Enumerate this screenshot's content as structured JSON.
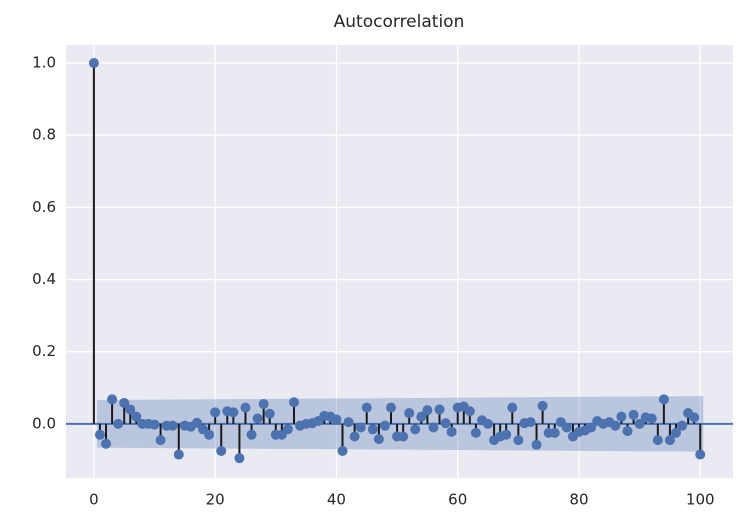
{
  "chart_data": {
    "type": "stem",
    "title": "Autocorrelation",
    "x": [
      0,
      1,
      2,
      3,
      4,
      5,
      6,
      7,
      8,
      9,
      10,
      11,
      12,
      13,
      14,
      15,
      16,
      17,
      18,
      19,
      20,
      21,
      22,
      23,
      24,
      25,
      26,
      27,
      28,
      29,
      30,
      31,
      32,
      33,
      34,
      35,
      36,
      37,
      38,
      39,
      40,
      41,
      42,
      43,
      44,
      45,
      46,
      47,
      48,
      49,
      50,
      51,
      52,
      53,
      54,
      55,
      56,
      57,
      58,
      59,
      60,
      61,
      62,
      63,
      64,
      65,
      66,
      67,
      68,
      69,
      70,
      71,
      72,
      73,
      74,
      75,
      76,
      77,
      78,
      79,
      80,
      81,
      82,
      83,
      84,
      85,
      86,
      87,
      88,
      89,
      90,
      91,
      92,
      93,
      94,
      95,
      96,
      97,
      98,
      99,
      100
    ],
    "values": [
      1.0,
      -0.03,
      -0.055,
      0.068,
      0.0,
      0.058,
      0.04,
      0.02,
      0.0,
      0.0,
      -0.002,
      -0.045,
      -0.005,
      -0.005,
      -0.085,
      -0.005,
      -0.008,
      0.003,
      -0.015,
      -0.03,
      0.032,
      -0.075,
      0.035,
      0.032,
      -0.095,
      0.045,
      -0.03,
      0.015,
      0.055,
      0.028,
      -0.03,
      -0.03,
      -0.015,
      0.06,
      -0.005,
      0.0,
      0.002,
      0.008,
      0.022,
      0.02,
      0.012,
      -0.075,
      0.005,
      -0.035,
      -0.01,
      0.045,
      -0.015,
      -0.042,
      -0.005,
      0.045,
      -0.035,
      -0.035,
      0.03,
      -0.015,
      0.02,
      0.038,
      -0.01,
      0.04,
      0.002,
      -0.022,
      0.045,
      0.048,
      0.035,
      -0.025,
      0.01,
      0.0,
      -0.045,
      -0.035,
      -0.03,
      0.045,
      -0.045,
      0.002,
      0.005,
      -0.058,
      0.05,
      -0.025,
      -0.025,
      0.005,
      -0.01,
      -0.035,
      -0.022,
      -0.018,
      -0.01,
      0.008,
      0.0,
      0.005,
      -0.005,
      0.02,
      -0.02,
      0.025,
      0.0,
      0.018,
      0.015,
      -0.045,
      0.068,
      -0.045,
      -0.025,
      -0.005,
      0.03,
      0.018,
      -0.085
    ],
    "color": "#4c72b0",
    "stem_color": "#1a1a1a",
    "confidence_band": {
      "x": [
        0.5,
        100.5
      ],
      "upper": [
        0.066,
        0.077
      ],
      "lower": [
        -0.066,
        -0.077
      ]
    },
    "hline": 0,
    "xlim": [
      -4.6,
      105.4
    ],
    "ylim": [
      -0.15,
      1.05
    ],
    "xticks": [
      0,
      20,
      40,
      60,
      80,
      100
    ],
    "yticks": [
      {
        "value": 0,
        "label": "0.0"
      },
      0.2,
      0.4,
      0.6,
      0.8,
      {
        "value": 1,
        "label": "1.0"
      }
    ],
    "grid": true
  }
}
